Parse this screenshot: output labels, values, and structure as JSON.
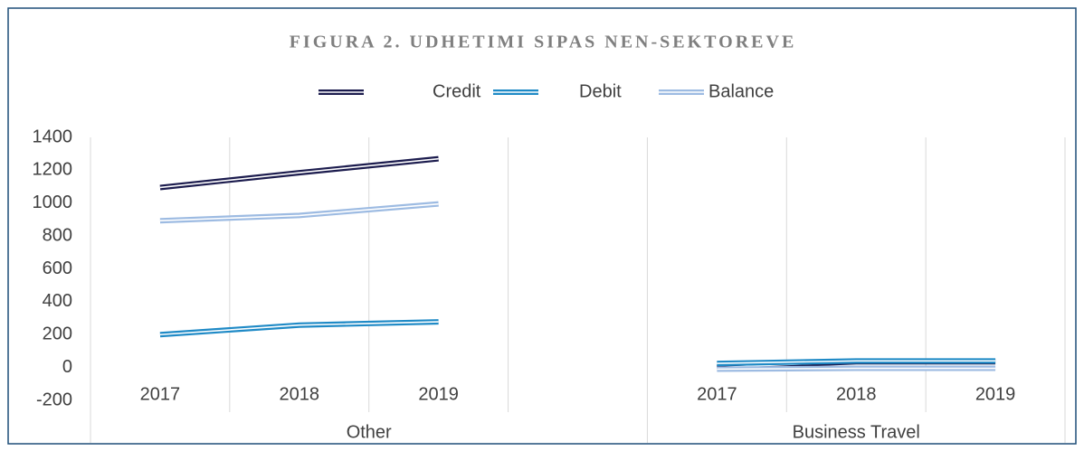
{
  "chart_data": {
    "type": "line",
    "title": "FIGURA 2. UDHETIMI SIPAS NEN-SEKTOREVE",
    "groups": [
      {
        "label": "Other",
        "categories": [
          "2017",
          "2018",
          "2019",
          null
        ]
      },
      {
        "label": "Business Travel",
        "categories": [
          "2017",
          "2018",
          "2019"
        ]
      }
    ],
    "series": [
      {
        "name": "Credit",
        "color": "#1c1c4e",
        "values": [
          1095,
          1185,
          1270,
          null,
          0,
          35,
          35
        ]
      },
      {
        "name": "Debit",
        "color": "#1f8ac6",
        "values": [
          200,
          258,
          278,
          null,
          25,
          40,
          40
        ]
      },
      {
        "name": "Balance",
        "color": "#9dbbe2",
        "values": [
          893,
          925,
          995,
          null,
          -10,
          -5,
          -5
        ]
      }
    ],
    "ylim": [
      -200,
      1400
    ],
    "yticks": [
      -200,
      0,
      200,
      400,
      600,
      800,
      1000,
      1200,
      1400
    ],
    "grid": "vertical"
  }
}
